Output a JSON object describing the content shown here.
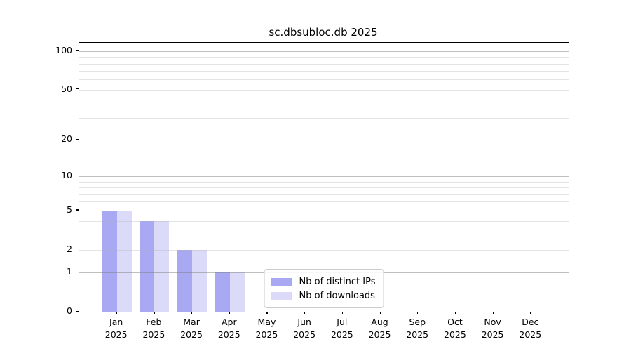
{
  "figure": {
    "title": "sc.dbsubloc.db 2025"
  },
  "chart_data": {
    "type": "bar",
    "title": "sc.dbsubloc.db 2025",
    "categories": [
      "Jan 2025",
      "Feb 2025",
      "Mar 2025",
      "Apr 2025",
      "May 2025",
      "Jun 2025",
      "Jul 2025",
      "Aug 2025",
      "Sep 2025",
      "Oct 2025",
      "Nov 2025",
      "Dec 2025"
    ],
    "series": [
      {
        "name": "Nb of distinct IPs",
        "color": "#a9a9f3",
        "values": [
          5,
          4,
          2,
          1,
          0,
          0,
          0,
          0,
          0,
          0,
          0,
          0
        ]
      },
      {
        "name": "Nb of downloads",
        "color": "#dbdaf9",
        "values": [
          5,
          4,
          2,
          1,
          0,
          0,
          0,
          0,
          0,
          0,
          0,
          0
        ]
      }
    ],
    "xlabel": "",
    "ylabel": "",
    "yscale": "log1p",
    "ylim": [
      0,
      116
    ],
    "ytick_values": [
      0,
      1,
      2,
      5,
      10,
      20,
      50,
      100
    ],
    "ytick_labels": [
      "0",
      "1",
      "2",
      "5",
      "10",
      "20",
      "50",
      "100"
    ],
    "grid_major_values": [
      1,
      10,
      100
    ],
    "grid_minor_values": [
      2,
      3,
      4,
      5,
      6,
      7,
      8,
      9,
      20,
      30,
      40,
      50,
      60,
      70,
      80,
      90
    ],
    "grid": "on",
    "legend_position": "lower center inside",
    "legend_entries": [
      "Nb of distinct IPs",
      "Nb of downloads"
    ]
  }
}
